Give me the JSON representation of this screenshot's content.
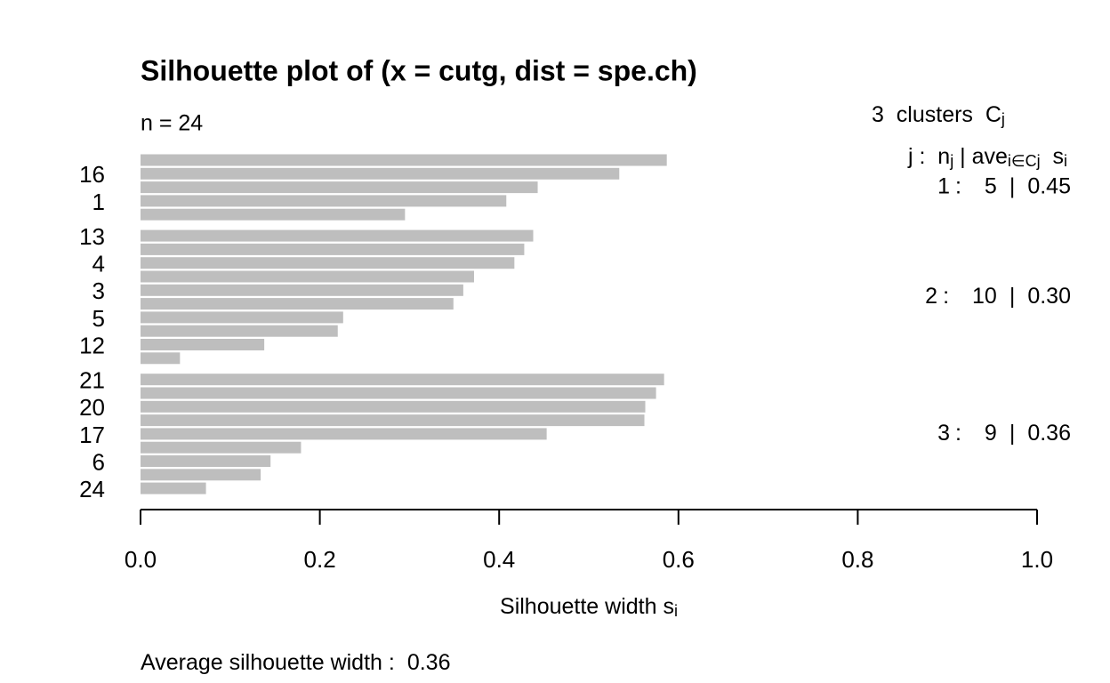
{
  "chart_data": {
    "type": "silhouette",
    "title": "Silhouette plot of (x = cutg, dist = spe.ch)",
    "subtitle": "n = 24",
    "categories": [
      null,
      "16",
      null,
      "1",
      null,
      "13",
      null,
      "4",
      null,
      "3",
      null,
      "5",
      null,
      "12",
      null,
      "21",
      null,
      "20",
      null,
      "17",
      null,
      "6",
      null,
      "24"
    ],
    "series": [
      {
        "color": "#bebebe",
        "values": [
          0.587,
          0.534,
          0.443,
          0.408,
          0.295,
          0.438,
          0.428,
          0.417,
          0.372,
          0.36,
          0.349,
          0.226,
          0.22,
          0.138,
          0.044,
          0.584,
          0.575,
          0.563,
          0.562,
          0.453,
          0.179,
          0.145,
          0.134,
          0.073
        ]
      }
    ],
    "clusters_header": [
      {
        "text": "3  clusters  C",
        "sub": false
      },
      {
        "text": "j",
        "sub": true
      }
    ],
    "stats_header": [
      {
        "text": "j :  n",
        "sub": false
      },
      {
        "text": "j",
        "sub": true
      },
      {
        "text": " | ave",
        "sub": false
      },
      {
        "text": "i∈Cj",
        "sub": true
      },
      {
        "text": "  s",
        "sub": false
      },
      {
        "text": "i",
        "sub": true
      }
    ],
    "stats_separators": [
      ":",
      "|"
    ],
    "clusters": [
      {
        "j": 1,
        "n": 5,
        "ave": "0.45"
      },
      {
        "j": 2,
        "n": 10,
        "ave": "0.30"
      },
      {
        "j": 3,
        "n": 9,
        "ave": "0.36"
      }
    ],
    "xlim": [
      0,
      1
    ],
    "xticks": [
      {
        "value": 0,
        "label": "0.0"
      },
      0.2,
      0.4,
      0.6,
      0.8,
      {
        "value": 1,
        "label": "1.0"
      }
    ],
    "xlabel": [
      {
        "text": "Silhouette width s",
        "sub": false
      },
      {
        "text": "i",
        "sub": true
      }
    ],
    "footer": "Average silhouette width :",
    "average_width": 0.36
  }
}
